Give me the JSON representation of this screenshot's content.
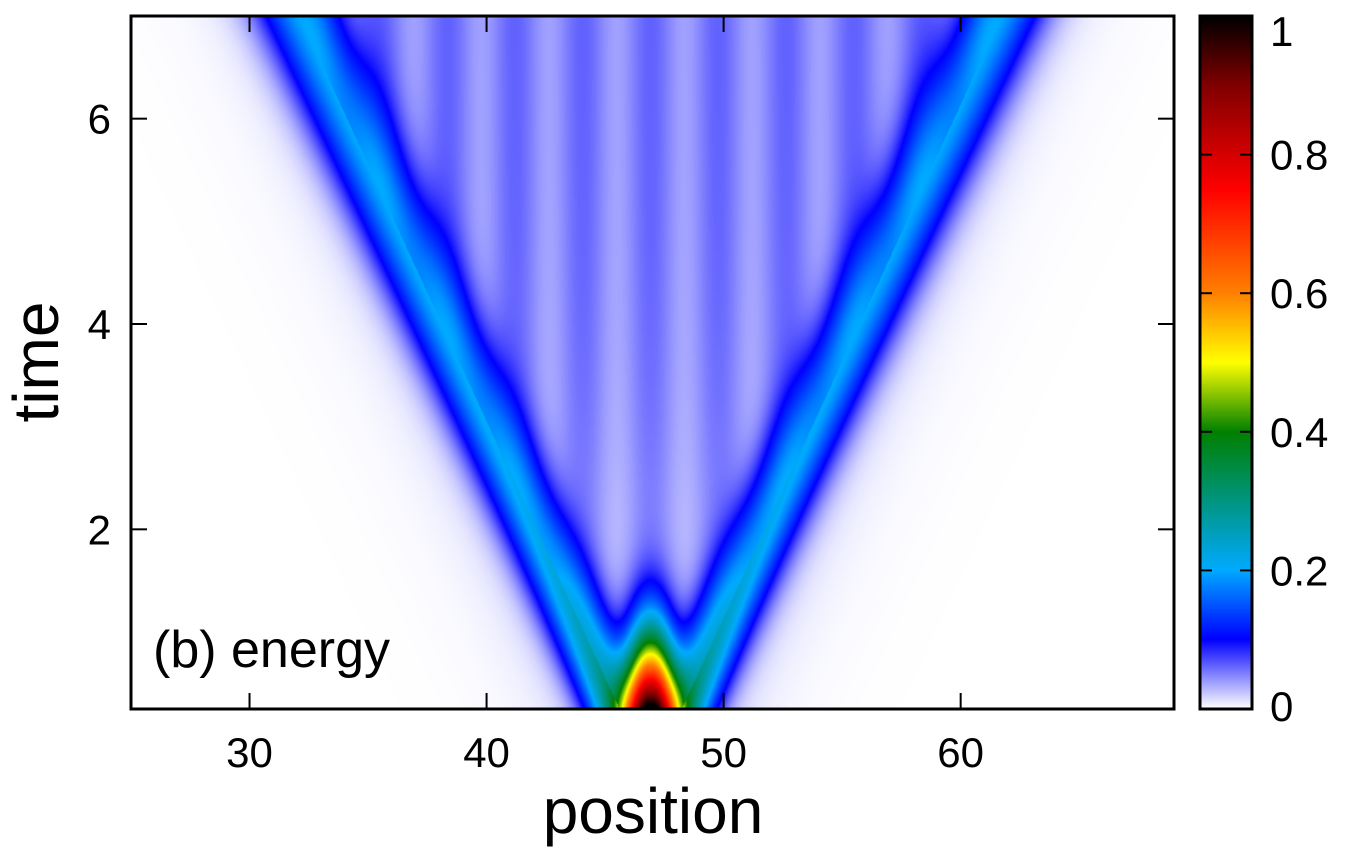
{
  "chart_data": {
    "type": "heatmap",
    "title": "",
    "annotation": "(b) energy",
    "xlabel": "position",
    "ylabel": "time",
    "xlim": [
      25,
      69
    ],
    "ylim": [
      0.25,
      7
    ],
    "x_ticks": [
      30,
      40,
      50,
      60
    ],
    "x_tick_labels": [
      "30",
      "40",
      "50",
      "60"
    ],
    "y_ticks": [
      2,
      4,
      6
    ],
    "y_tick_labels": [
      "2",
      "4",
      "6"
    ],
    "grid": false,
    "colorbar": {
      "range": [
        0,
        1
      ],
      "ticks": [
        0,
        0.2,
        0.4,
        0.6,
        0.8,
        1
      ],
      "tick_labels": [
        "0",
        "0.2",
        "0.4",
        "0.6",
        "0.8",
        "1"
      ],
      "colormap": [
        {
          "v": 0.0,
          "color": "#ffffff"
        },
        {
          "v": 0.1,
          "color": "#0000ff"
        },
        {
          "v": 0.2,
          "color": "#00aaff"
        },
        {
          "v": 0.4,
          "color": "#008000"
        },
        {
          "v": 0.5,
          "color": "#ffff00"
        },
        {
          "v": 0.6,
          "color": "#ff8000"
        },
        {
          "v": 0.75,
          "color": "#ff0000"
        },
        {
          "v": 0.9,
          "color": "#800000"
        },
        {
          "v": 1.0,
          "color": "#000000"
        }
      ]
    },
    "field": {
      "center": 46.9,
      "speed": 2.0,
      "initial_peak": 1.0,
      "front_peak": 0.14,
      "interior_level": 0.05
    }
  }
}
